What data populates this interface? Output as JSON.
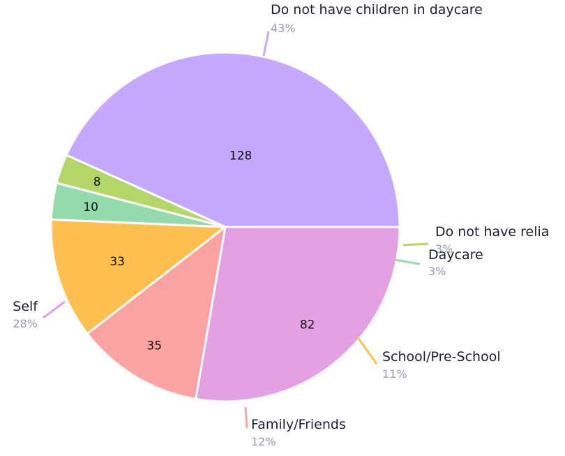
{
  "chart_data": {
    "type": "pie",
    "title": "",
    "slices": [
      {
        "name": "Do not have children in daycare",
        "value": 128,
        "percent_label": "43%",
        "color": "#c5a8ff"
      },
      {
        "name": "Do not have relia",
        "value": 8,
        "percent_label": "3%",
        "color": "#b3d667"
      },
      {
        "name": "Daycare",
        "value": 10,
        "percent_label": "3%",
        "color": "#93dbad"
      },
      {
        "name": "School/Pre-School",
        "value": 33,
        "percent_label": "11%",
        "color": "#ffc04f"
      },
      {
        "name": "Family/Friends",
        "value": 35,
        "percent_label": "12%",
        "color": "#fba3a3"
      },
      {
        "name": "Self",
        "value": 82,
        "percent_label": "28%",
        "color": "#e3a0e3"
      }
    ]
  }
}
